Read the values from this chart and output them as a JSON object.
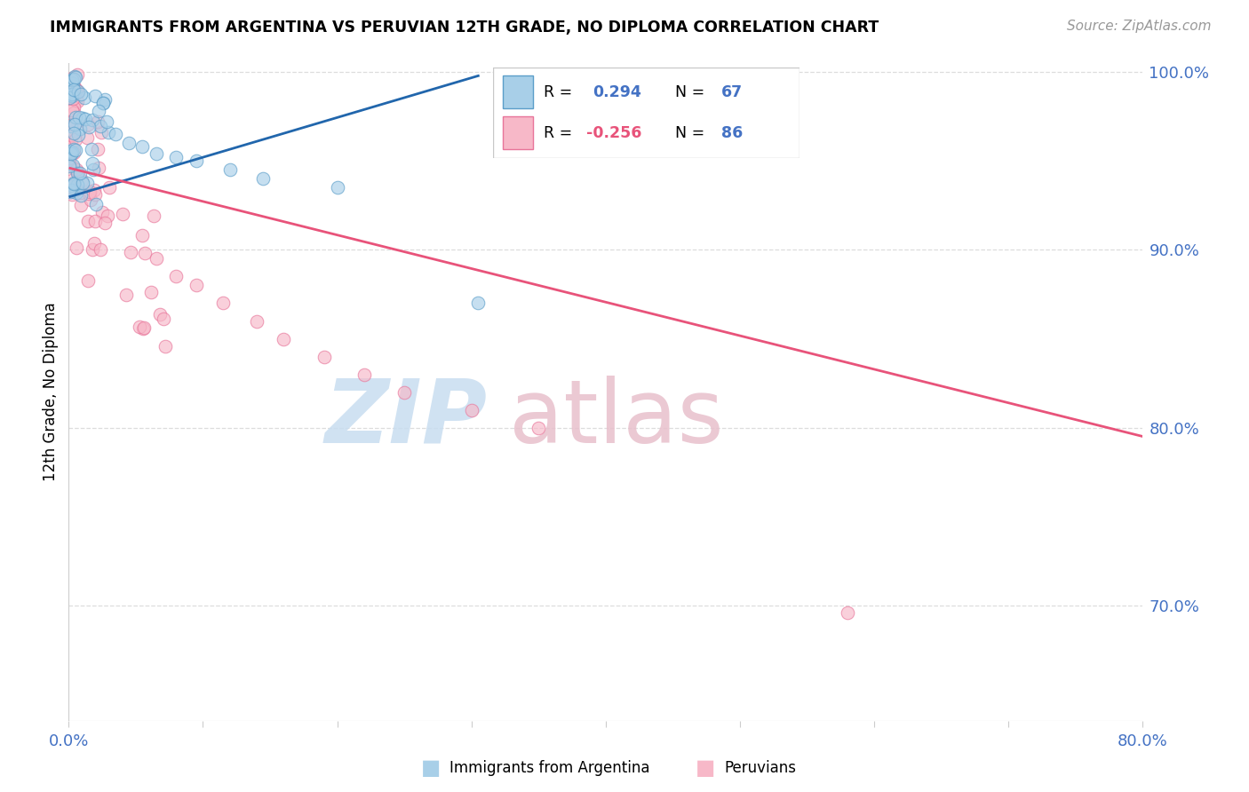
{
  "title": "IMMIGRANTS FROM ARGENTINA VS PERUVIAN 12TH GRADE, NO DIPLOMA CORRELATION CHART",
  "source": "Source: ZipAtlas.com",
  "ylabel": "12th Grade, No Diploma",
  "xmin": 0.0,
  "xmax": 0.8,
  "ymin": 0.635,
  "ymax": 1.005,
  "yticks": [
    0.7,
    0.8,
    0.9,
    1.0
  ],
  "ytick_labels": [
    "70.0%",
    "80.0%",
    "90.0%",
    "100.0%"
  ],
  "argentina_R": 0.294,
  "argentina_N": 67,
  "peru_R": -0.256,
  "peru_N": 86,
  "argentina_color": "#a8cfe8",
  "peru_color": "#f7b8c8",
  "argentina_edge_color": "#5b9ec9",
  "peru_edge_color": "#e8759a",
  "argentina_line_color": "#2166ac",
  "peru_line_color": "#e8537a",
  "axis_label_color": "#4472c4",
  "grid_color": "#dddddd",
  "watermark_zip_color": "#c8ddf0",
  "watermark_atlas_color": "#e8c0cc",
  "background": "#ffffff",
  "arg_line_x0": 0.001,
  "arg_line_x1": 0.305,
  "arg_line_y0": 0.93,
  "arg_line_y1": 0.998,
  "peru_line_x0": 0.001,
  "peru_line_x1": 0.8,
  "peru_line_y0": 0.946,
  "peru_line_y1": 0.795
}
